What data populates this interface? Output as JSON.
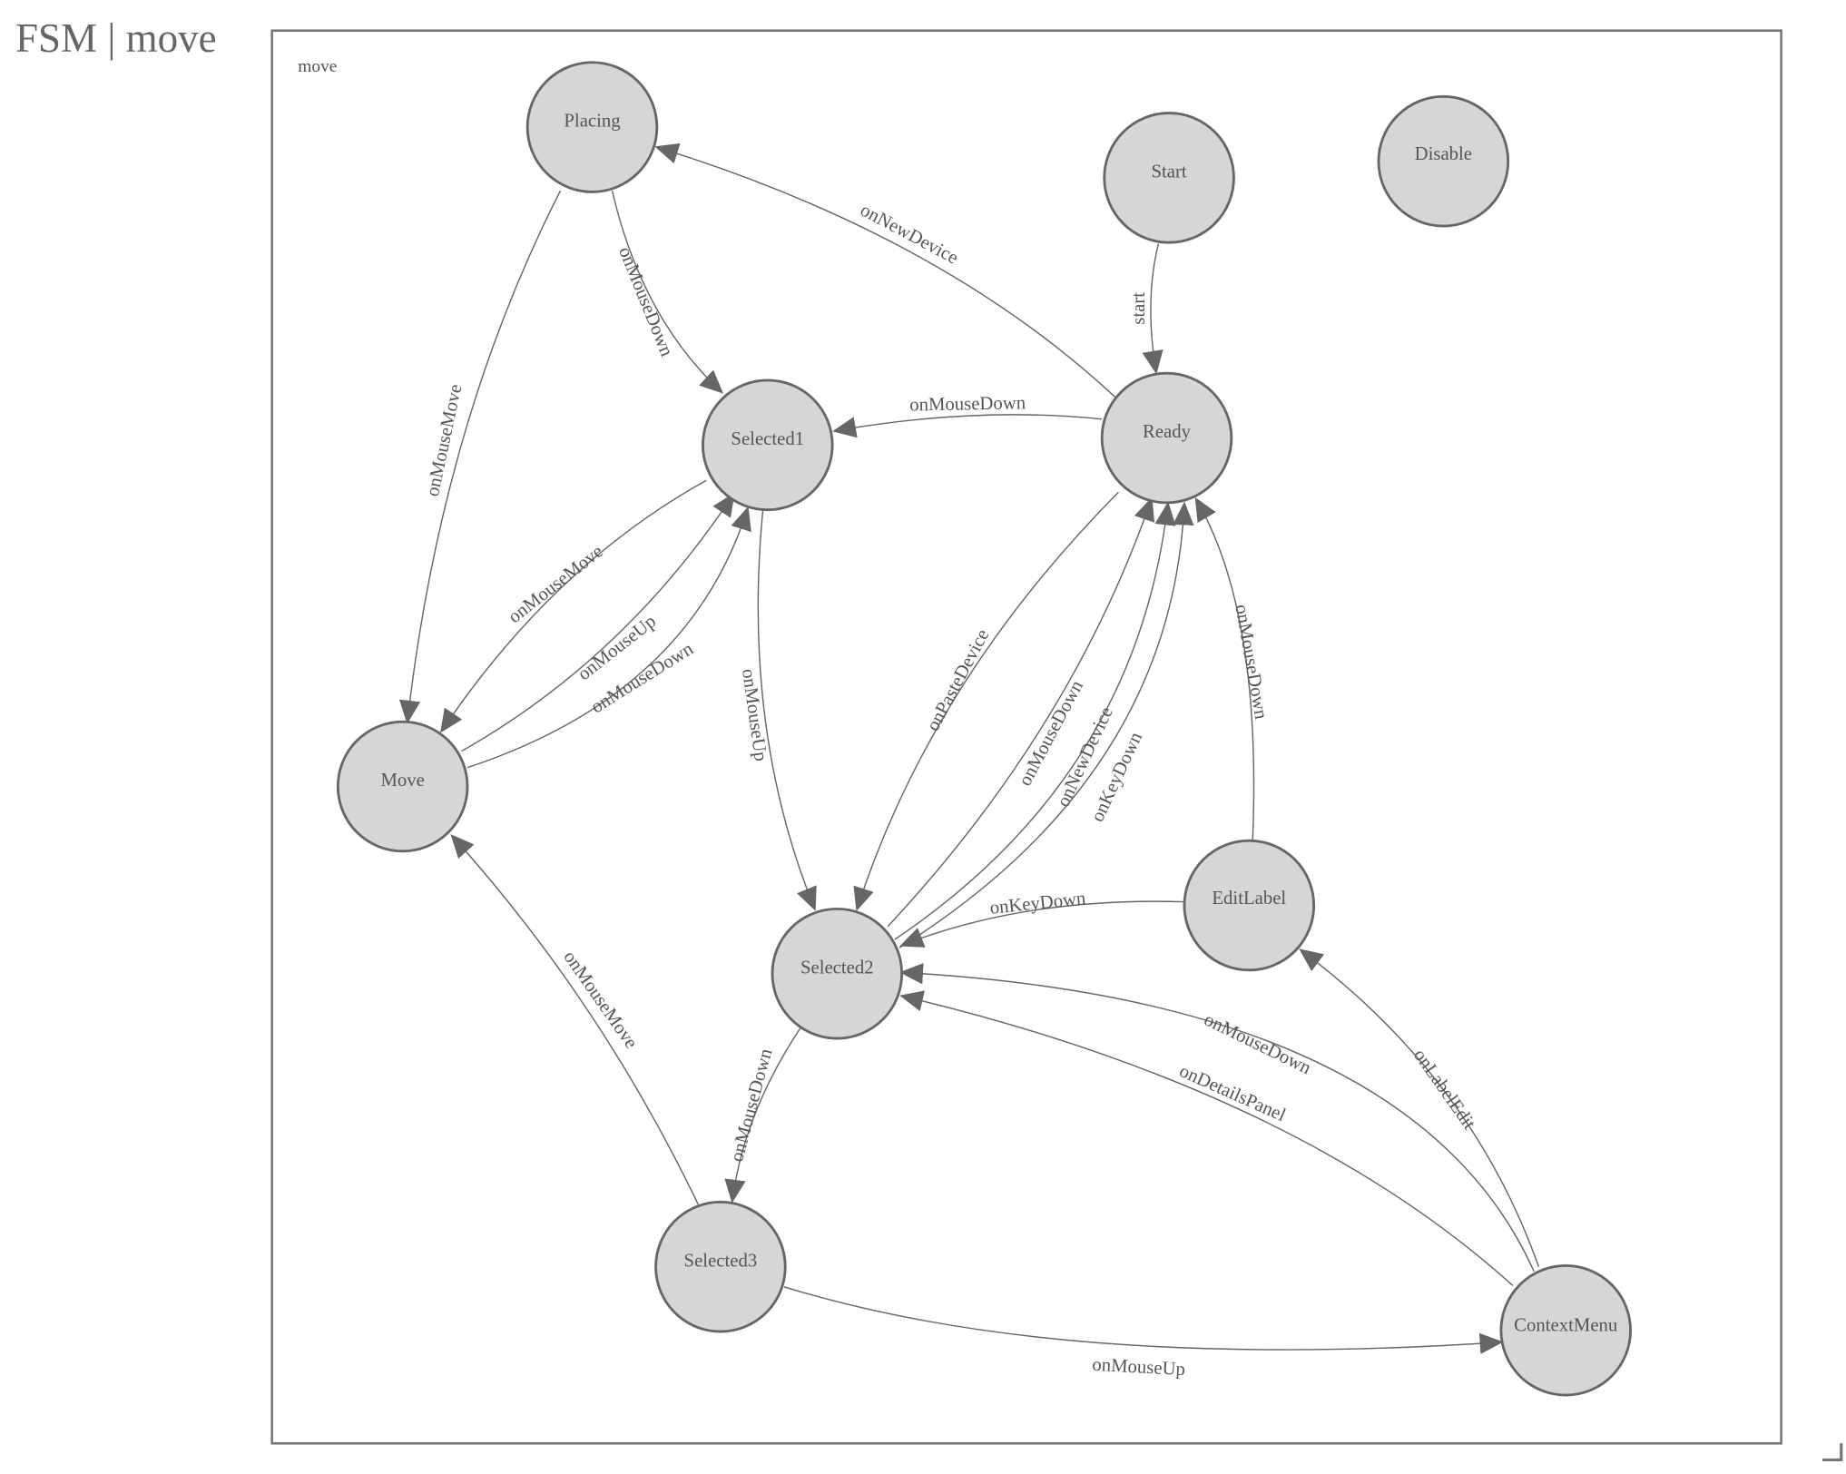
{
  "title": "FSM | move",
  "diagram": {
    "group_label": "move",
    "nodes": {
      "placing": "Placing",
      "start": "Start",
      "disable": "Disable",
      "selected1": "Selected1",
      "ready": "Ready",
      "move": "Move",
      "selected2": "Selected2",
      "editlabel": "EditLabel",
      "selected3": "Selected3",
      "contextmenu": "ContextMenu"
    },
    "edges": [
      {
        "from": "Ready",
        "to": "Placing",
        "label": "onNewDevice"
      },
      {
        "from": "Placing",
        "to": "Selected1",
        "label": "onMouseDown"
      },
      {
        "from": "Placing",
        "to": "Move",
        "label": "onMouseMove"
      },
      {
        "from": "Start",
        "to": "Ready",
        "label": "start"
      },
      {
        "from": "Ready",
        "to": "Selected1",
        "label": "onMouseDown"
      },
      {
        "from": "Selected1",
        "to": "Move",
        "label": "onMouseMove"
      },
      {
        "from": "Move",
        "to": "Selected1",
        "label": "onMouseUp"
      },
      {
        "from": "Move",
        "to": "Selected1",
        "label": "onMouseDown"
      },
      {
        "from": "Selected1",
        "to": "Selected2",
        "label": "onMouseUp"
      },
      {
        "from": "Ready",
        "to": "Selected2",
        "label": "onPasteDevice"
      },
      {
        "from": "Selected2",
        "to": "Ready",
        "label": "onMouseDown"
      },
      {
        "from": "Selected2",
        "to": "Ready",
        "label": "onNewDevice"
      },
      {
        "from": "Selected2",
        "to": "Ready",
        "label": "onKeyDown"
      },
      {
        "from": "EditLabel",
        "to": "Ready",
        "label": "onMouseDown"
      },
      {
        "from": "EditLabel",
        "to": "Selected2",
        "label": "onKeyDown"
      },
      {
        "from": "ContextMenu",
        "to": "Selected2",
        "label": "onMouseDown"
      },
      {
        "from": "ContextMenu",
        "to": "Selected2",
        "label": "onDetailsPanel"
      },
      {
        "from": "ContextMenu",
        "to": "EditLabel",
        "label": "onLabelEdit"
      },
      {
        "from": "Selected2",
        "to": "Selected3",
        "label": "onMouseDown"
      },
      {
        "from": "Selected3",
        "to": "Move",
        "label": "onMouseMove"
      },
      {
        "from": "Selected3",
        "to": "ContextMenu",
        "label": "onMouseUp"
      }
    ]
  }
}
